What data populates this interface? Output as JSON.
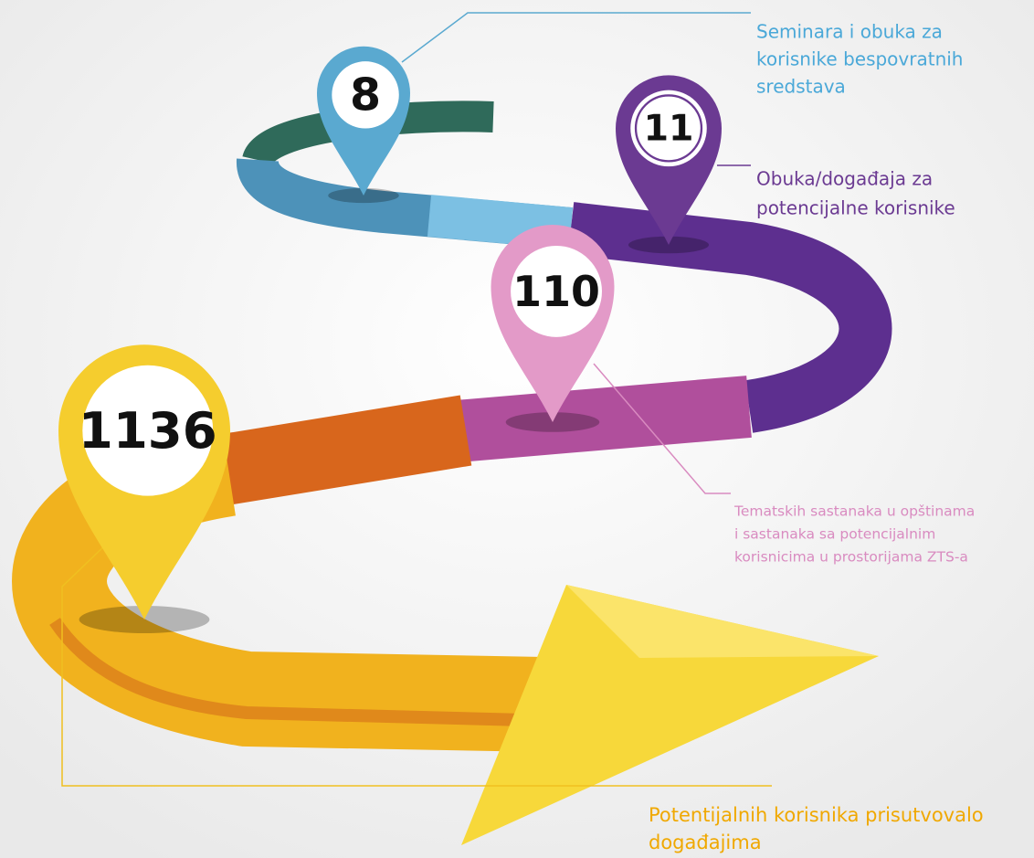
{
  "items": [
    {
      "value": 8,
      "lines": [
        "Seminara i obuka za",
        "korisnike bespovratnih",
        "sredstava"
      ]
    },
    {
      "value": 11,
      "lines": [
        "Obuka/događaja za",
        "potencijalne korisnike"
      ]
    },
    {
      "value": 110,
      "lines": [
        "Tematskih sastanaka u opštinama",
        "i sastanaka sa potencijalnim",
        "korisnicima u prostorijama ZTS-a"
      ]
    },
    {
      "value": 1136,
      "lines": [
        "Potentijalnih korisnika prisutvovalo",
        "događajima"
      ]
    }
  ]
}
